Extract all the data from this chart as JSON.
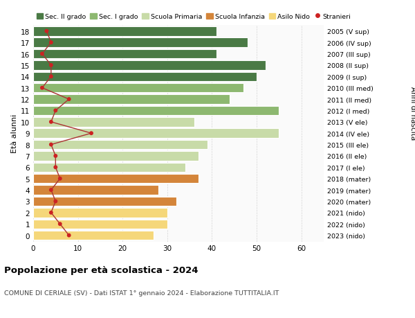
{
  "ages": [
    0,
    1,
    2,
    3,
    4,
    5,
    6,
    7,
    8,
    9,
    10,
    11,
    12,
    13,
    14,
    15,
    16,
    17,
    18
  ],
  "bar_values": [
    27,
    30,
    30,
    32,
    28,
    37,
    34,
    37,
    39,
    55,
    36,
    55,
    44,
    47,
    50,
    52,
    41,
    48,
    41
  ],
  "stranieri": [
    8,
    6,
    4,
    5,
    4,
    6,
    5,
    5,
    4,
    13,
    4,
    5,
    8,
    2,
    4,
    4,
    2,
    4,
    3
  ],
  "bar_colors": [
    "#f5d77a",
    "#f5d77a",
    "#f5d77a",
    "#d4853a",
    "#d4853a",
    "#d4853a",
    "#c8dba8",
    "#c8dba8",
    "#c8dba8",
    "#c8dba8",
    "#c8dba8",
    "#8db870",
    "#8db870",
    "#8db870",
    "#4a7a45",
    "#4a7a45",
    "#4a7a45",
    "#4a7a45",
    "#4a7a45"
  ],
  "anni_nascita": [
    "2023 (nido)",
    "2022 (nido)",
    "2021 (nido)",
    "2020 (mater)",
    "2019 (mater)",
    "2018 (mater)",
    "2017 (I ele)",
    "2016 (II ele)",
    "2015 (III ele)",
    "2014 (IV ele)",
    "2013 (V ele)",
    "2012 (I med)",
    "2011 (II med)",
    "2010 (III med)",
    "2009 (I sup)",
    "2008 (II sup)",
    "2007 (III sup)",
    "2006 (IV sup)",
    "2005 (V sup)"
  ],
  "legend_labels": [
    "Sec. II grado",
    "Sec. I grado",
    "Scuola Primaria",
    "Scuola Infanzia",
    "Asilo Nido",
    "Stranieri"
  ],
  "legend_colors": [
    "#4a7a45",
    "#8db870",
    "#c8dba8",
    "#d4853a",
    "#f5d77a",
    "#cc2222"
  ],
  "title1": "Popolazione per età scolastica - 2024",
  "title2": "COMUNE DI CERIALE (SV) - Dati ISTAT 1° gennaio 2024 - Elaborazione TUTTITALIA.IT",
  "ylabel": "Età alunni",
  "ylabel2": "Anni di nascita",
  "xlim": [
    0,
    65
  ],
  "stranieri_color": "#cc2222",
  "stranieri_line_color": "#aa3333",
  "background_color": "#ffffff"
}
